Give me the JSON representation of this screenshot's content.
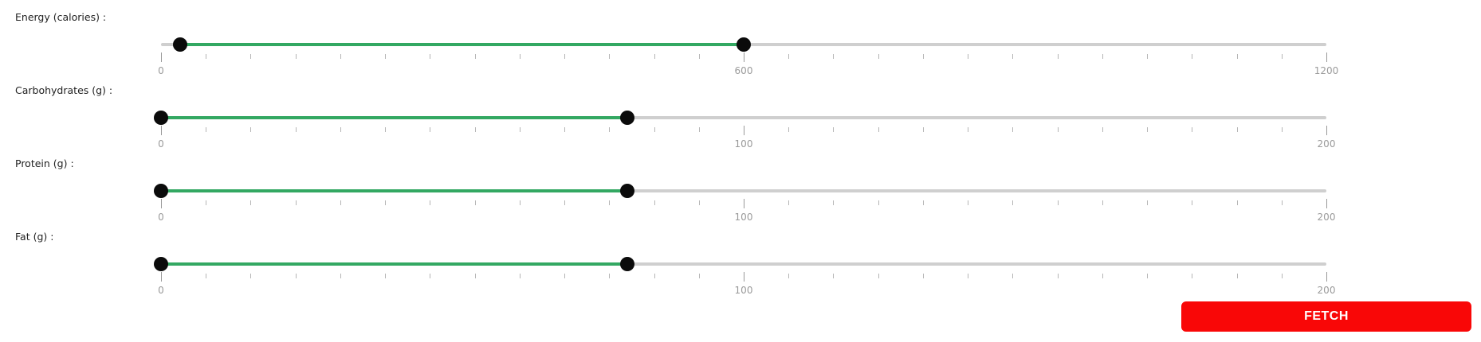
{
  "sliders": [
    {
      "label": "Energy (calories) :",
      "min": 0,
      "max": 1200,
      "range": [
        20,
        600
      ],
      "tick_labels": [
        "0",
        "600",
        "1200"
      ]
    },
    {
      "label": "Carbohydrates (g) :",
      "min": 0,
      "max": 200,
      "range": [
        0,
        80
      ],
      "tick_labels": [
        "0",
        "100",
        "200"
      ]
    },
    {
      "label": "Protein (g) :",
      "min": 0,
      "max": 200,
      "range": [
        0,
        80
      ],
      "tick_labels": [
        "0",
        "100",
        "200"
      ]
    },
    {
      "label": "Fat (g) :",
      "min": 0,
      "max": 200,
      "range": [
        0,
        80
      ],
      "tick_labels": [
        "0",
        "100",
        "200"
      ]
    }
  ],
  "fetch_button": {
    "label": "FETCH"
  },
  "colors": {
    "accent_fill": "#33a862",
    "track": "#cfcfcf",
    "handle": "#0b0b0b",
    "button": "#f90707"
  }
}
